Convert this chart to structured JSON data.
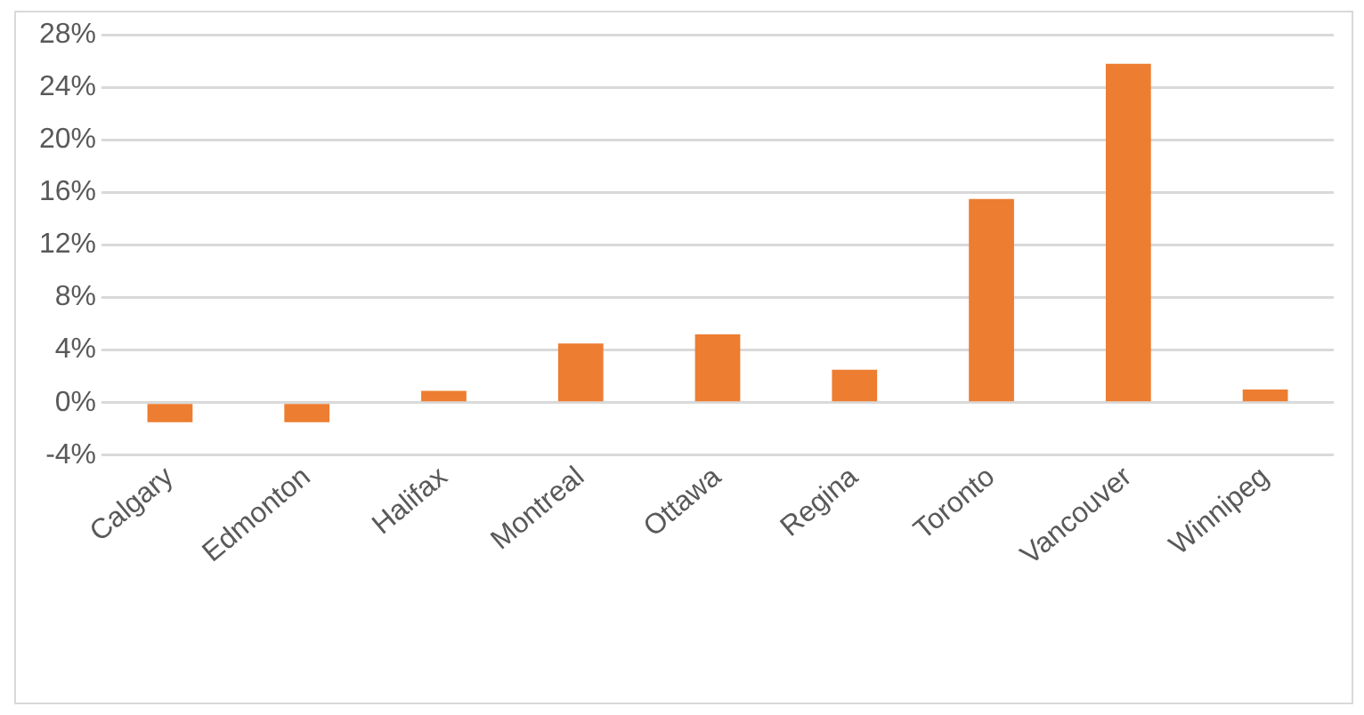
{
  "chart_data": {
    "type": "bar",
    "categories": [
      "Calgary",
      "Edmonton",
      "Halifax",
      "Montreal",
      "Ottawa",
      "Regina",
      "Toronto",
      "Vancouver",
      "Winnipeg"
    ],
    "values": [
      -1.5,
      -1.5,
      0.9,
      4.5,
      5.2,
      2.5,
      15.5,
      25.8,
      1.0
    ],
    "color": "#ed7d31",
    "ylim": [
      -4,
      28
    ],
    "yticks": [
      {
        "value": -4,
        "label": "-4%"
      },
      {
        "value": 0,
        "label": "0%"
      },
      {
        "value": 4,
        "label": "4%"
      },
      {
        "value": 8,
        "label": "8%"
      },
      {
        "value": 12,
        "label": "12%"
      },
      {
        "value": 16,
        "label": "16%"
      },
      {
        "value": 20,
        "label": "20%"
      },
      {
        "value": 24,
        "label": "24%"
      },
      {
        "value": 28,
        "label": "28%"
      }
    ],
    "grid": "y"
  }
}
